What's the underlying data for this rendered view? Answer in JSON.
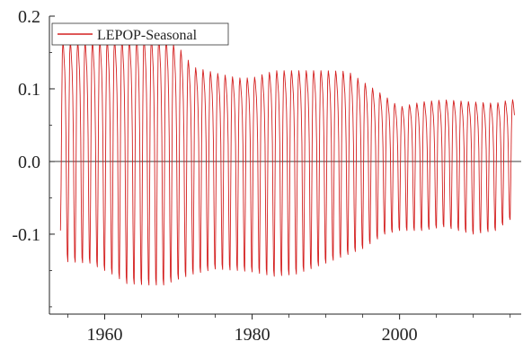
{
  "chart_data": {
    "type": "line",
    "title": "",
    "xlabel": "",
    "ylabel": "",
    "xlim": [
      1952.5,
      2016.5
    ],
    "ylim": [
      -0.21,
      0.2
    ],
    "x_ticks": [
      1960,
      1980,
      2000
    ],
    "x_tick_labels": [
      "1960",
      "1980",
      "2000"
    ],
    "y_ticks": [
      -0.1,
      0.0,
      0.1,
      0.2
    ],
    "y_tick_labels": [
      "-0.1",
      "0.0",
      "0.1",
      "0.2"
    ],
    "zero_line": true,
    "grid": false,
    "legend": {
      "position": "top-left",
      "entries": [
        "LEPOP-Seasonal"
      ]
    },
    "series": [
      {
        "name": "LEPOP-Seasonal",
        "color": "#d42020",
        "frequency": "monthly",
        "start_year": 1954,
        "end_year": 2015,
        "envelope": {
          "years": [
            1954,
            1955,
            1958,
            1961,
            1963,
            1966,
            1968,
            1970,
            1972,
            1975,
            1978,
            1980,
            1983,
            1986,
            1990,
            1993,
            1995,
            1998,
            2000,
            2003,
            2006,
            2010,
            2013,
            2015
          ],
          "max": [
            0.165,
            0.165,
            0.165,
            0.168,
            0.168,
            0.17,
            0.17,
            0.158,
            0.13,
            0.122,
            0.115,
            0.115,
            0.125,
            0.125,
            0.125,
            0.124,
            0.11,
            0.09,
            0.075,
            0.082,
            0.085,
            0.082,
            0.08,
            0.085
          ],
          "min": [
            -0.095,
            -0.138,
            -0.14,
            -0.155,
            -0.168,
            -0.17,
            -0.17,
            -0.162,
            -0.155,
            -0.148,
            -0.15,
            -0.152,
            -0.158,
            -0.155,
            -0.14,
            -0.128,
            -0.12,
            -0.1,
            -0.095,
            -0.095,
            -0.09,
            -0.1,
            -0.095,
            -0.08
          ]
        }
      }
    ]
  }
}
